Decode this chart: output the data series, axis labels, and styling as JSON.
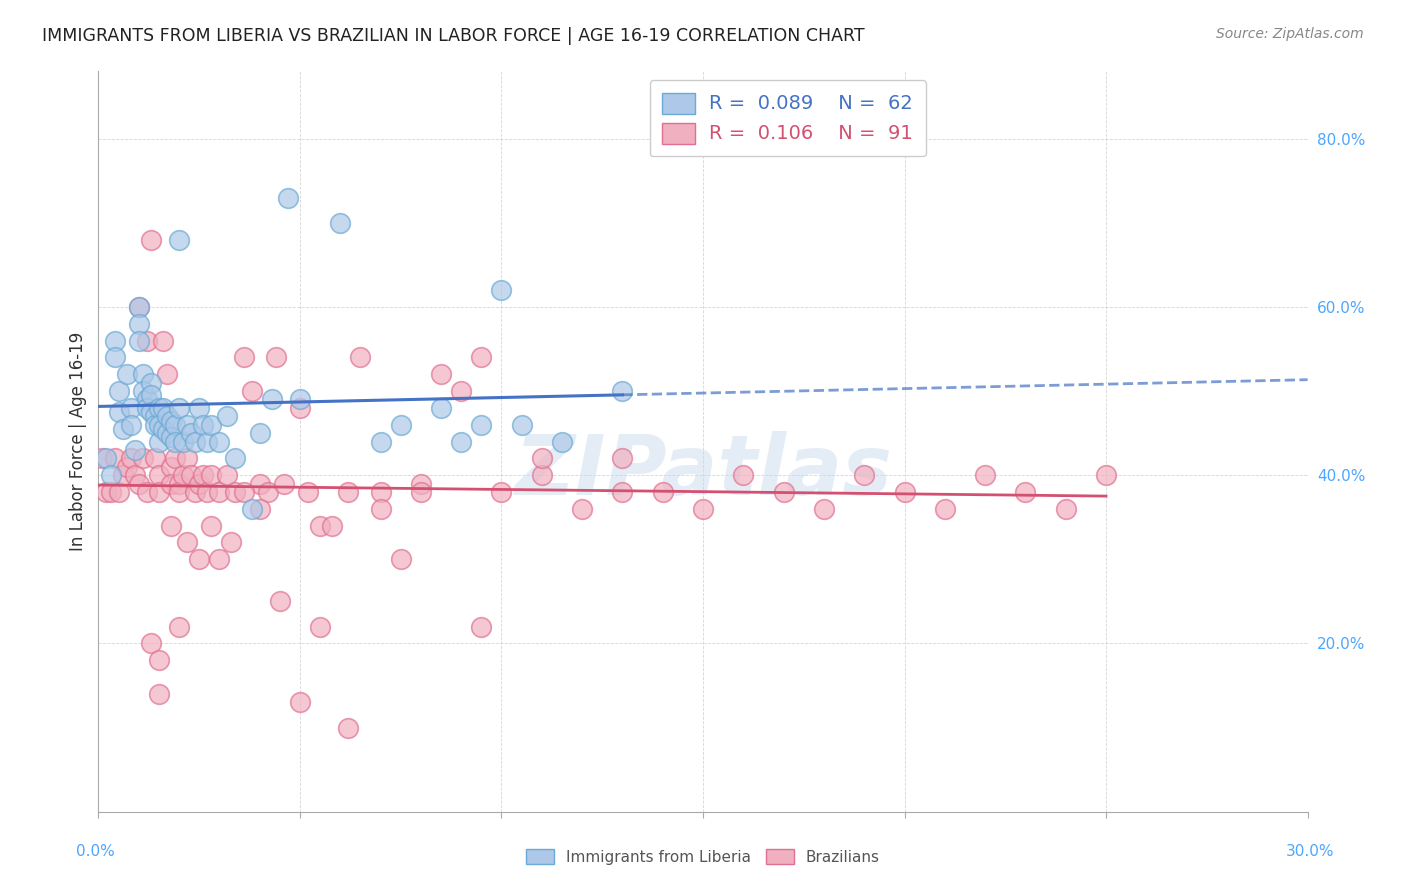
{
  "title": "IMMIGRANTS FROM LIBERIA VS BRAZILIAN IN LABOR FORCE | AGE 16-19 CORRELATION CHART",
  "source": "Source: ZipAtlas.com",
  "ylabel_label": "In Labor Force | Age 16-19",
  "xlim": [
    0.0,
    0.3
  ],
  "ylim": [
    0.0,
    0.88
  ],
  "watermark": "ZIPatlas",
  "legend_liberia": {
    "R": "0.089",
    "N": "62"
  },
  "legend_brazilian": {
    "R": "0.106",
    "N": "91"
  },
  "color_liberia_fill": "#adc8e8",
  "color_liberia_edge": "#6aaad4",
  "color_liberia_line": "#4472C4",
  "color_brazilian_fill": "#f0b0c0",
  "color_brazilian_edge": "#e07090",
  "color_brazilian_line": "#d45070",
  "color_axis_label": "#4da6ff",
  "ytick_values": [
    0.2,
    0.4,
    0.6,
    0.8
  ],
  "ytick_labels": [
    "20.0%",
    "40.0%",
    "60.0%",
    "80.0%"
  ],
  "lib_x": [
    0.002,
    0.003,
    0.004,
    0.004,
    0.005,
    0.005,
    0.006,
    0.007,
    0.008,
    0.008,
    0.009,
    0.01,
    0.01,
    0.01,
    0.011,
    0.011,
    0.012,
    0.012,
    0.013,
    0.013,
    0.013,
    0.014,
    0.014,
    0.015,
    0.015,
    0.015,
    0.016,
    0.016,
    0.017,
    0.017,
    0.018,
    0.018,
    0.019,
    0.019,
    0.02,
    0.02,
    0.021,
    0.022,
    0.023,
    0.024,
    0.025,
    0.026,
    0.027,
    0.028,
    0.03,
    0.032,
    0.034,
    0.038,
    0.04,
    0.043,
    0.047,
    0.05,
    0.06,
    0.07,
    0.075,
    0.085,
    0.09,
    0.095,
    0.1,
    0.105,
    0.115,
    0.13
  ],
  "lib_y": [
    0.42,
    0.4,
    0.56,
    0.54,
    0.5,
    0.475,
    0.455,
    0.52,
    0.48,
    0.46,
    0.43,
    0.6,
    0.58,
    0.56,
    0.52,
    0.5,
    0.49,
    0.48,
    0.51,
    0.495,
    0.475,
    0.47,
    0.46,
    0.48,
    0.46,
    0.44,
    0.48,
    0.455,
    0.47,
    0.45,
    0.465,
    0.445,
    0.46,
    0.44,
    0.68,
    0.48,
    0.44,
    0.46,
    0.45,
    0.44,
    0.48,
    0.46,
    0.44,
    0.46,
    0.44,
    0.47,
    0.42,
    0.36,
    0.45,
    0.49,
    0.73,
    0.49,
    0.7,
    0.44,
    0.46,
    0.48,
    0.44,
    0.46,
    0.62,
    0.46,
    0.44,
    0.5
  ],
  "bra_x": [
    0.001,
    0.002,
    0.003,
    0.004,
    0.005,
    0.006,
    0.007,
    0.008,
    0.009,
    0.01,
    0.01,
    0.011,
    0.012,
    0.012,
    0.013,
    0.014,
    0.015,
    0.015,
    0.016,
    0.017,
    0.018,
    0.018,
    0.019,
    0.02,
    0.02,
    0.021,
    0.022,
    0.023,
    0.024,
    0.025,
    0.026,
    0.027,
    0.028,
    0.03,
    0.032,
    0.034,
    0.036,
    0.038,
    0.04,
    0.042,
    0.044,
    0.046,
    0.05,
    0.052,
    0.055,
    0.058,
    0.062,
    0.065,
    0.07,
    0.075,
    0.08,
    0.085,
    0.09,
    0.095,
    0.1,
    0.11,
    0.12,
    0.13,
    0.14,
    0.15,
    0.16,
    0.17,
    0.18,
    0.19,
    0.2,
    0.21,
    0.22,
    0.23,
    0.24,
    0.25,
    0.013,
    0.015,
    0.018,
    0.02,
    0.022,
    0.025,
    0.028,
    0.03,
    0.033,
    0.036,
    0.04,
    0.045,
    0.05,
    0.055,
    0.062,
    0.07,
    0.08,
    0.095,
    0.11,
    0.13,
    0.015
  ],
  "bra_y": [
    0.42,
    0.38,
    0.38,
    0.42,
    0.38,
    0.4,
    0.41,
    0.42,
    0.4,
    0.6,
    0.39,
    0.42,
    0.56,
    0.38,
    0.68,
    0.42,
    0.4,
    0.38,
    0.56,
    0.52,
    0.41,
    0.39,
    0.42,
    0.39,
    0.38,
    0.4,
    0.42,
    0.4,
    0.38,
    0.39,
    0.4,
    0.38,
    0.4,
    0.38,
    0.4,
    0.38,
    0.54,
    0.5,
    0.39,
    0.38,
    0.54,
    0.39,
    0.48,
    0.38,
    0.34,
    0.34,
    0.38,
    0.54,
    0.38,
    0.3,
    0.39,
    0.52,
    0.5,
    0.54,
    0.38,
    0.4,
    0.36,
    0.42,
    0.38,
    0.36,
    0.4,
    0.38,
    0.36,
    0.4,
    0.38,
    0.36,
    0.4,
    0.38,
    0.36,
    0.4,
    0.2,
    0.18,
    0.34,
    0.22,
    0.32,
    0.3,
    0.34,
    0.3,
    0.32,
    0.38,
    0.36,
    0.25,
    0.13,
    0.22,
    0.1,
    0.36,
    0.38,
    0.22,
    0.42,
    0.38,
    0.14
  ]
}
